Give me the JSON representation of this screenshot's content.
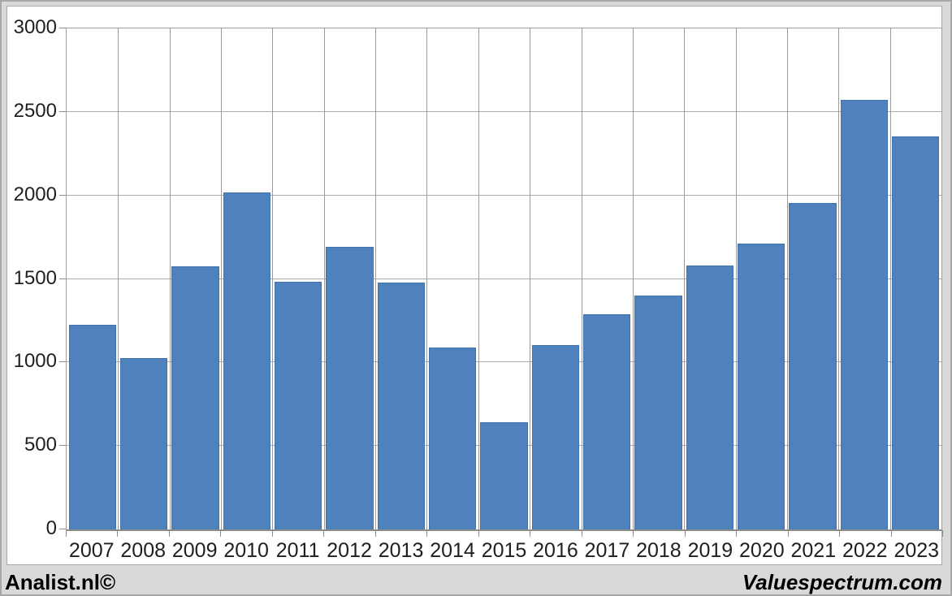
{
  "chart_data": {
    "type": "bar",
    "categories": [
      "2007",
      "2008",
      "2009",
      "2010",
      "2011",
      "2012",
      "2013",
      "2014",
      "2015",
      "2016",
      "2017",
      "2018",
      "2019",
      "2020",
      "2021",
      "2022",
      "2023"
    ],
    "values": [
      1225,
      1025,
      1575,
      2020,
      1485,
      1690,
      1480,
      1090,
      640,
      1105,
      1290,
      1400,
      1580,
      1710,
      1955,
      2570,
      2355
    ],
    "title": "",
    "xlabel": "",
    "ylabel": "",
    "ylim": [
      0,
      3000
    ],
    "yticks": [
      0,
      500,
      1000,
      1500,
      2000,
      2500,
      3000
    ],
    "grid": true,
    "legend": "none",
    "bar_color": "#4f81bd",
    "bar_border_color": "#4273b0",
    "gridline_color": "#ababab",
    "plot_background": "#ffffff",
    "page_background": "#d9d9d9"
  },
  "footer": {
    "left_text": "Analist.nl©",
    "right_text": "Valuespectrum.com"
  }
}
